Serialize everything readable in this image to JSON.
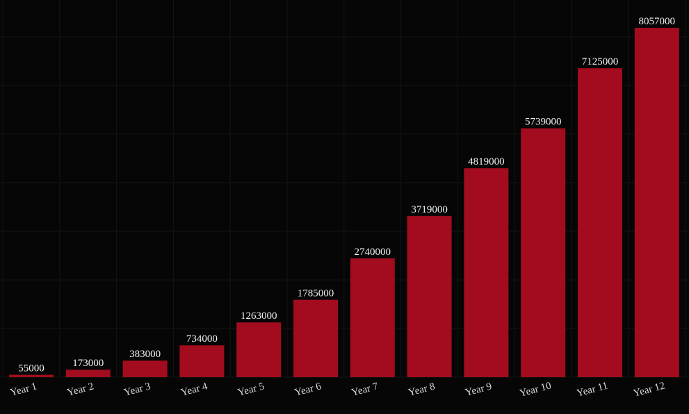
{
  "chart_data": {
    "type": "bar",
    "categories": [
      "Year 1",
      "Year 2",
      "Year 3",
      "Year 4",
      "Year 5",
      "Year 6",
      "Year 7",
      "Year 8",
      "Year 9",
      "Year 10",
      "Year 11",
      "Year 12"
    ],
    "values": [
      55000,
      173000,
      383000,
      734000,
      1263000,
      1785000,
      2740000,
      3719000,
      4819000,
      5739000,
      7125000,
      8057000
    ],
    "data_labels": [
      "55000",
      "173000",
      "383000",
      "734000",
      "1263000",
      "1785000",
      "2740000",
      "3719000",
      "4819000",
      "5739000",
      "7125000",
      "8057000"
    ],
    "title": "",
    "xlabel": "",
    "ylabel": "",
    "ylim": [
      0,
      8057000
    ],
    "grid": true,
    "legend": "none",
    "colors": {
      "bar": "#a20c1e",
      "background": "#060606",
      "text": "#f2f2f2",
      "grid": "#141414"
    }
  }
}
